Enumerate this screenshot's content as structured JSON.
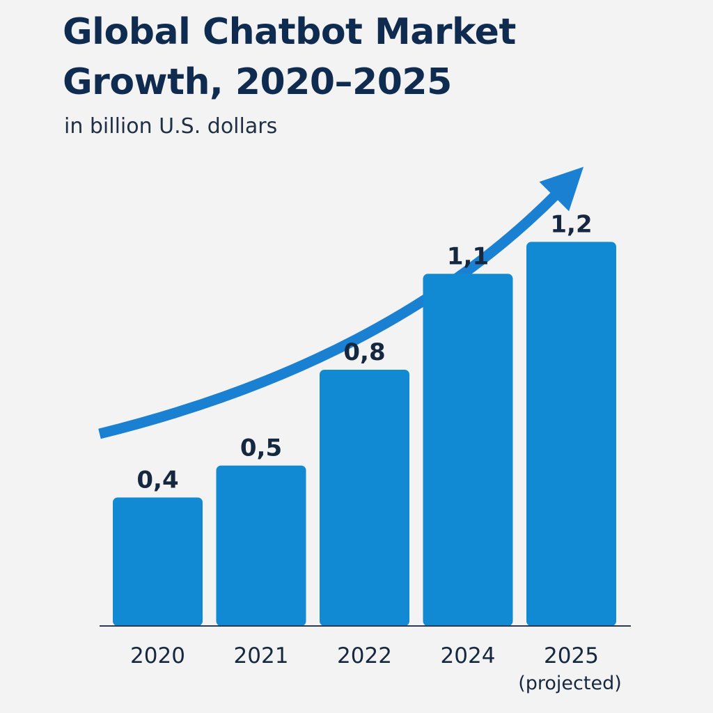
{
  "chart_data": {
    "type": "bar",
    "title": "Global Chatbot Market Growth, 2020–2025",
    "subtitle": "in billion U.S. dollars",
    "categories": [
      "2020",
      "2021",
      "2022",
      "2024",
      "2025"
    ],
    "category_notes": [
      "",
      "",
      "",
      "",
      "(projected)"
    ],
    "values": [
      0.4,
      0.5,
      0.8,
      1.1,
      1.2
    ],
    "value_labels": [
      "0,4",
      "0,5",
      "0,8",
      "1,1",
      "1,2"
    ],
    "ylim": [
      0,
      1.53
    ],
    "grid": false,
    "annotations": [
      "upward trend arrow"
    ],
    "colors": {
      "bar": "#1189d3",
      "arrow": "#1a80d2",
      "text": "#0f2b50",
      "axis": "#2b3a4f"
    }
  }
}
